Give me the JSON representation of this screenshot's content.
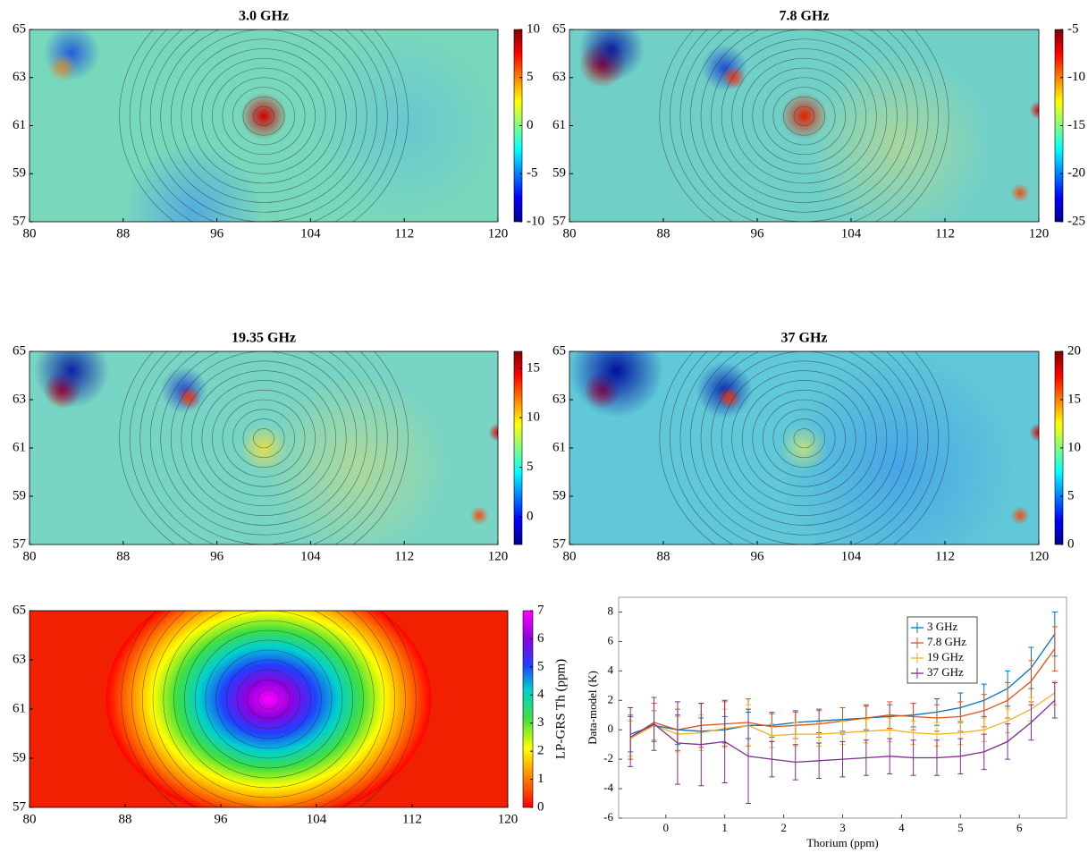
{
  "chart_data": [
    {
      "type": "heatmap",
      "title": "3.0 GHz",
      "xlim": [
        80,
        120
      ],
      "xticks": [
        80,
        88,
        96,
        104,
        112,
        120
      ],
      "ylim": [
        57,
        65
      ],
      "yticks": [
        57,
        59,
        61,
        63,
        65
      ],
      "colormap": "jet",
      "clim": [
        -10,
        10
      ],
      "cticks": [
        -10,
        -5,
        0,
        5,
        10
      ]
    },
    {
      "type": "heatmap",
      "title": "7.8 GHz",
      "xlim": [
        80,
        120
      ],
      "xticks": [
        80,
        88,
        96,
        104,
        112,
        120
      ],
      "ylim": [
        57,
        65
      ],
      "yticks": [
        57,
        59,
        61,
        63,
        65
      ],
      "colormap": "jet",
      "clim": [
        -25,
        -5
      ],
      "cticks": [
        -25,
        -20,
        -15,
        -10,
        -5
      ]
    },
    {
      "type": "heatmap",
      "title": "19.35 GHz",
      "xlim": [
        80,
        120
      ],
      "xticks": [
        80,
        88,
        96,
        104,
        112,
        120
      ],
      "ylim": [
        57,
        65
      ],
      "yticks": [
        57,
        59,
        61,
        63,
        65
      ],
      "colormap": "jet",
      "clim": [
        -2.8,
        16.7
      ],
      "cticks": [
        0,
        5,
        10,
        15
      ]
    },
    {
      "type": "heatmap",
      "title": "37 GHz",
      "xlim": [
        80,
        120
      ],
      "xticks": [
        80,
        88,
        96,
        104,
        112,
        120
      ],
      "ylim": [
        57,
        65
      ],
      "yticks": [
        57,
        59,
        61,
        63,
        65
      ],
      "colormap": "jet",
      "clim": [
        0,
        20
      ],
      "cticks": [
        0,
        5,
        10,
        15,
        20
      ]
    },
    {
      "type": "heatmap",
      "xlim": [
        80,
        120
      ],
      "xticks": [
        80,
        88,
        96,
        104,
        112,
        120
      ],
      "ylim": [
        57,
        65
      ],
      "yticks": [
        57,
        59,
        61,
        63,
        65
      ],
      "colormap": "hsv",
      "clim": [
        0,
        7
      ],
      "cticks": [
        0,
        1,
        2,
        3,
        4,
        5,
        6,
        7
      ],
      "clabel": "LP-GRS Th (ppm)"
    },
    {
      "type": "errorbar",
      "xlabel": "Thorium (ppm)",
      "ylabel": "Data-model (K)",
      "xlim": [
        -0.8,
        6.8
      ],
      "xticks": [
        0,
        1,
        2,
        3,
        4,
        5,
        6
      ],
      "ylim": [
        -6,
        9
      ],
      "yticks": [
        -6,
        -4,
        -2,
        0,
        2,
        4,
        6,
        8
      ],
      "legend": "upper-right",
      "x": [
        -0.6,
        -0.2,
        0.2,
        0.6,
        1.0,
        1.4,
        1.8,
        2.2,
        2.6,
        3.0,
        3.4,
        3.8,
        4.2,
        4.6,
        5.0,
        5.4,
        5.8,
        6.2,
        6.6
      ],
      "series": [
        {
          "name": "3 GHz",
          "color": "#0072bd",
          "values": [
            -0.3,
            0.3,
            0.0,
            -0.1,
            0.0,
            0.3,
            0.3,
            0.5,
            0.6,
            0.7,
            0.8,
            0.9,
            1.0,
            1.2,
            1.5,
            2.0,
            2.8,
            4.2,
            6.5
          ],
          "errors": [
            1.2,
            1.0,
            1.0,
            0.9,
            0.9,
            0.9,
            0.8,
            0.8,
            0.8,
            0.8,
            0.8,
            0.8,
            0.8,
            0.9,
            1.0,
            1.1,
            1.2,
            1.4,
            1.5
          ]
        },
        {
          "name": "7.8 GHz",
          "color": "#d95319",
          "values": [
            -0.5,
            0.5,
            0.0,
            0.3,
            0.4,
            0.5,
            0.2,
            0.3,
            0.4,
            0.6,
            0.8,
            1.0,
            0.9,
            0.8,
            0.9,
            1.3,
            2.0,
            3.3,
            5.5
          ],
          "errors": [
            1.5,
            1.3,
            1.4,
            1.5,
            1.5,
            1.6,
            1.0,
            0.9,
            0.9,
            0.9,
            0.9,
            0.9,
            0.9,
            0.9,
            1.0,
            1.1,
            1.2,
            1.4,
            1.5
          ]
        },
        {
          "name": "19 GHz",
          "color": "#edb120",
          "values": [
            -0.6,
            0.3,
            -0.3,
            -0.2,
            0.1,
            0.3,
            -0.4,
            -0.3,
            -0.3,
            -0.2,
            -0.1,
            0.0,
            -0.2,
            -0.3,
            -0.2,
            0.0,
            0.6,
            1.4,
            2.5
          ],
          "errors": [
            1.2,
            1.0,
            1.2,
            1.2,
            1.3,
            1.4,
            0.8,
            0.8,
            0.8,
            0.8,
            0.8,
            0.8,
            0.8,
            0.8,
            0.8,
            0.8,
            0.8,
            0.8,
            0.8
          ]
        },
        {
          "name": "37 GHz",
          "color": "#7e2f8e",
          "values": [
            -0.5,
            0.4,
            -0.9,
            -1.0,
            -0.8,
            -1.8,
            -2.0,
            -2.2,
            -2.1,
            -2.0,
            -1.9,
            -1.8,
            -1.9,
            -1.9,
            -1.8,
            -1.5,
            -0.8,
            0.5,
            2.0
          ],
          "errors": [
            2.0,
            1.8,
            2.8,
            2.8,
            2.8,
            3.2,
            1.2,
            1.2,
            1.2,
            1.2,
            1.2,
            1.2,
            1.2,
            1.2,
            1.2,
            1.2,
            1.2,
            1.2,
            1.2
          ]
        }
      ]
    }
  ]
}
